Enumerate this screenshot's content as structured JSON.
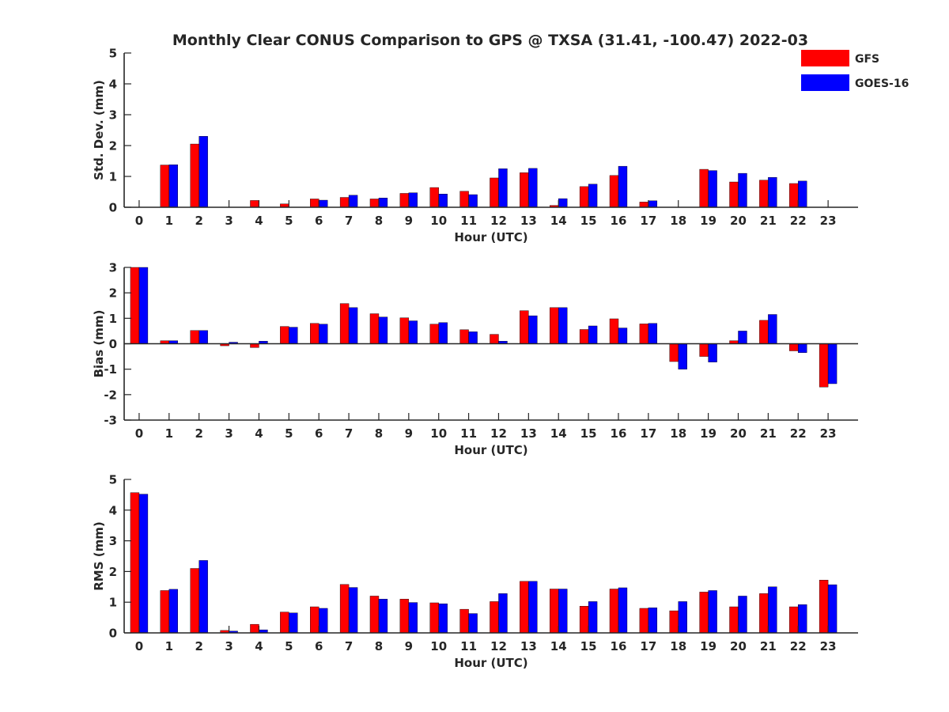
{
  "title": "Monthly Clear CONUS Comparison to GPS @ TXSA (31.41, -100.47) 2022-03",
  "legend": {
    "placement": "top-right",
    "entries": [
      {
        "name": "GFS",
        "color": "#ff0000"
      },
      {
        "name": "GOES-16",
        "color": "#0000ff"
      }
    ]
  },
  "chart_data": [
    {
      "type": "bar",
      "xlabel": "Hour (UTC)",
      "ylabel": "Std. Dev. (mm)",
      "ylim": [
        0,
        5
      ],
      "yticks": [
        0,
        1,
        2,
        3,
        4,
        5
      ],
      "categories": [
        "0",
        "1",
        "2",
        "3",
        "4",
        "5",
        "6",
        "7",
        "8",
        "9",
        "10",
        "11",
        "12",
        "13",
        "14",
        "15",
        "16",
        "17",
        "18",
        "19",
        "20",
        "21",
        "22",
        "23"
      ],
      "series": [
        {
          "name": "GFS",
          "color": "#ff0000",
          "values": [
            0,
            1.37,
            2.05,
            0,
            0.22,
            0.11,
            0.27,
            0.32,
            0.27,
            0.45,
            0.64,
            0.52,
            0.95,
            1.12,
            0.06,
            0.67,
            1.03,
            0.17,
            0,
            1.23,
            0.82,
            0.88,
            0.77,
            0
          ]
        },
        {
          "name": "GOES-16",
          "color": "#0000ff",
          "values": [
            0,
            1.38,
            2.3,
            0,
            0,
            0,
            0.23,
            0.39,
            0.3,
            0.47,
            0.43,
            0.41,
            1.25,
            1.26,
            0.28,
            0.75,
            1.33,
            0.21,
            0,
            1.19,
            1.1,
            0.97,
            0.85,
            0
          ]
        }
      ]
    },
    {
      "type": "bar",
      "xlabel": "Hour (UTC)",
      "ylabel": "Bias (mm)",
      "ylim": [
        -3,
        3
      ],
      "yticks": [
        -3,
        -2,
        -1,
        0,
        1,
        2,
        3
      ],
      "categories": [
        "0",
        "1",
        "2",
        "3",
        "4",
        "5",
        "6",
        "7",
        "8",
        "9",
        "10",
        "11",
        "12",
        "13",
        "14",
        "15",
        "16",
        "17",
        "18",
        "19",
        "20",
        "21",
        "22",
        "23"
      ],
      "series": [
        {
          "name": "GFS",
          "color": "#ff0000",
          "values": [
            3.0,
            0.12,
            0.52,
            -0.08,
            -0.15,
            0.68,
            0.8,
            1.58,
            1.18,
            1.02,
            0.77,
            0.55,
            0.37,
            1.3,
            1.42,
            0.56,
            0.98,
            0.78,
            -0.7,
            -0.5,
            0.12,
            0.92,
            -0.28,
            -1.7
          ]
        },
        {
          "name": "GOES-16",
          "color": "#0000ff",
          "values": [
            3.0,
            0.12,
            0.52,
            0.06,
            0.1,
            0.65,
            0.77,
            1.42,
            1.05,
            0.9,
            0.83,
            0.47,
            0.1,
            1.1,
            1.42,
            0.7,
            0.62,
            0.8,
            -1.0,
            -0.72,
            0.5,
            1.15,
            -0.35,
            -1.57
          ]
        }
      ]
    },
    {
      "type": "bar",
      "xlabel": "Hour (UTC)",
      "ylabel": "RMS (mm)",
      "ylim": [
        0,
        5
      ],
      "yticks": [
        0,
        1,
        2,
        3,
        4,
        5
      ],
      "categories": [
        "0",
        "1",
        "2",
        "3",
        "4",
        "5",
        "6",
        "7",
        "8",
        "9",
        "10",
        "11",
        "12",
        "13",
        "14",
        "15",
        "16",
        "17",
        "18",
        "19",
        "20",
        "21",
        "22",
        "23"
      ],
      "series": [
        {
          "name": "GFS",
          "color": "#ff0000",
          "values": [
            4.57,
            1.38,
            2.1,
            0.08,
            0.28,
            0.68,
            0.85,
            1.58,
            1.2,
            1.1,
            0.98,
            0.77,
            1.02,
            1.68,
            1.43,
            0.87,
            1.43,
            0.8,
            0.72,
            1.33,
            0.85,
            1.28,
            0.85,
            1.72
          ]
        },
        {
          "name": "GOES-16",
          "color": "#0000ff",
          "values": [
            4.52,
            1.42,
            2.36,
            0.06,
            0.1,
            0.65,
            0.8,
            1.48,
            1.1,
            0.99,
            0.95,
            0.63,
            1.28,
            1.68,
            1.43,
            1.02,
            1.47,
            0.82,
            1.02,
            1.38,
            1.2,
            1.5,
            0.92,
            1.57
          ]
        }
      ]
    }
  ]
}
